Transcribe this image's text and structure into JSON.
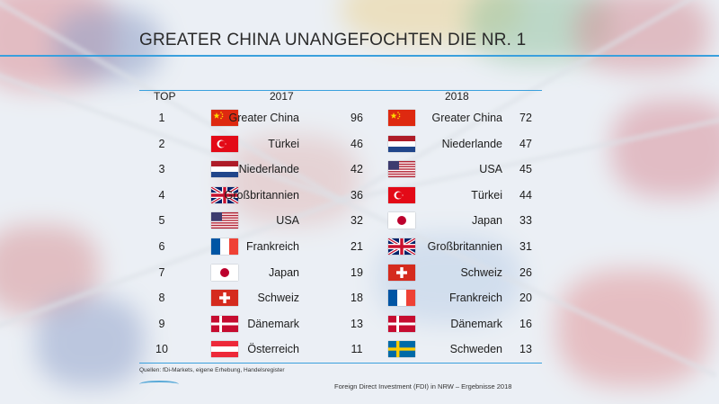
{
  "title": "GREATER CHINA UNANGEFOCHTEN DIE NR. 1",
  "headers": {
    "rank": "TOP",
    "year1": "2017",
    "year2": "2018"
  },
  "rows": [
    {
      "rank": "1",
      "c17": "Greater China",
      "f17": "china-flag-icon",
      "v17": "96",
      "c18": "Greater China",
      "f18": "china-flag-icon",
      "v18": "72"
    },
    {
      "rank": "2",
      "c17": "Türkei",
      "f17": "turkey-flag-icon",
      "v17": "46",
      "c18": "Niederlande",
      "f18": "netherlands-flag-icon",
      "v18": "47"
    },
    {
      "rank": "3",
      "c17": "Niederlande",
      "f17": "netherlands-flag-icon",
      "v17": "42",
      "c18": "USA",
      "f18": "usa-flag-icon",
      "v18": "45"
    },
    {
      "rank": "4",
      "c17": "Großbritannien",
      "f17": "uk-flag-icon",
      "v17": "36",
      "c18": "Türkei",
      "f18": "turkey-flag-icon",
      "v18": "44"
    },
    {
      "rank": "5",
      "c17": "USA",
      "f17": "usa-flag-icon",
      "v17": "32",
      "c18": "Japan",
      "f18": "japan-flag-icon",
      "v18": "33"
    },
    {
      "rank": "6",
      "c17": "Frankreich",
      "f17": "france-flag-icon",
      "v17": "21",
      "c18": "Großbritannien",
      "f18": "uk-flag-icon",
      "v18": "31"
    },
    {
      "rank": "7",
      "c17": "Japan",
      "f17": "japan-flag-icon",
      "v17": "19",
      "c18": "Schweiz",
      "f18": "switzerland-flag-icon",
      "v18": "26"
    },
    {
      "rank": "8",
      "c17": "Schweiz",
      "f17": "switzerland-flag-icon",
      "v17": "18",
      "c18": "Frankreich",
      "f18": "france-flag-icon",
      "v18": "20"
    },
    {
      "rank": "9",
      "c17": "Dänemark",
      "f17": "denmark-flag-icon",
      "v17": "13",
      "c18": "Dänemark",
      "f18": "denmark-flag-icon",
      "v18": "16"
    },
    {
      "rank": "10",
      "c17": "Österreich",
      "f17": "austria-flag-icon",
      "v17": "11",
      "c18": "Schweden",
      "f18": "sweden-flag-icon",
      "v18": "13"
    }
  ],
  "source": "Quellen: fDi-Markets, eigene Erhebung, Handelsregister",
  "footer": "Foreign Direct Investment (FDI) in NRW – Ergebnisse 2018",
  "accent_color": "#3aa0dd"
}
